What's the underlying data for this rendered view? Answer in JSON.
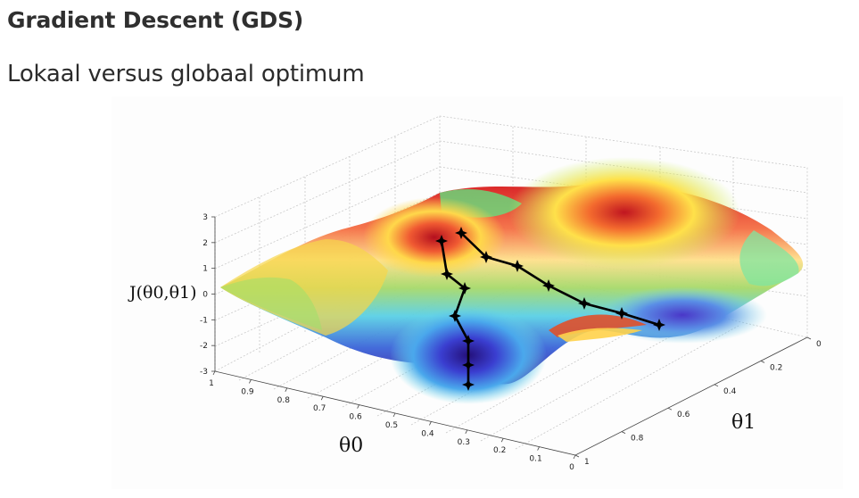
{
  "page": {
    "title": "Gradient Descent (GDS)",
    "subtitle": "Lokaal versus globaal optimum"
  },
  "chart_data": {
    "type": "surface",
    "zlabel": "J(θ0,θ1)",
    "xlabel": "θ0",
    "ylabel": "θ1",
    "z_ticks": [
      "3",
      "2",
      "1",
      "0",
      "-1",
      "-2",
      "-3"
    ],
    "x_ticks": [
      "1",
      "0.9",
      "0.8",
      "0.7",
      "0.6",
      "0.5",
      "0.4",
      "0.3",
      "0.2",
      "0.1",
      "0"
    ],
    "y_ticks": [
      "0",
      "0.2",
      "0.4",
      "0.6",
      "0.8",
      "1"
    ],
    "zlim": [
      -3,
      3
    ],
    "xlim": [
      0,
      1
    ],
    "ylim": [
      0,
      1
    ],
    "grid": true,
    "colormap": "jet",
    "paths": [
      {
        "name": "",
        "color": "#000000"
      },
      {
        "name": "",
        "color": "#000000"
      }
    ]
  }
}
